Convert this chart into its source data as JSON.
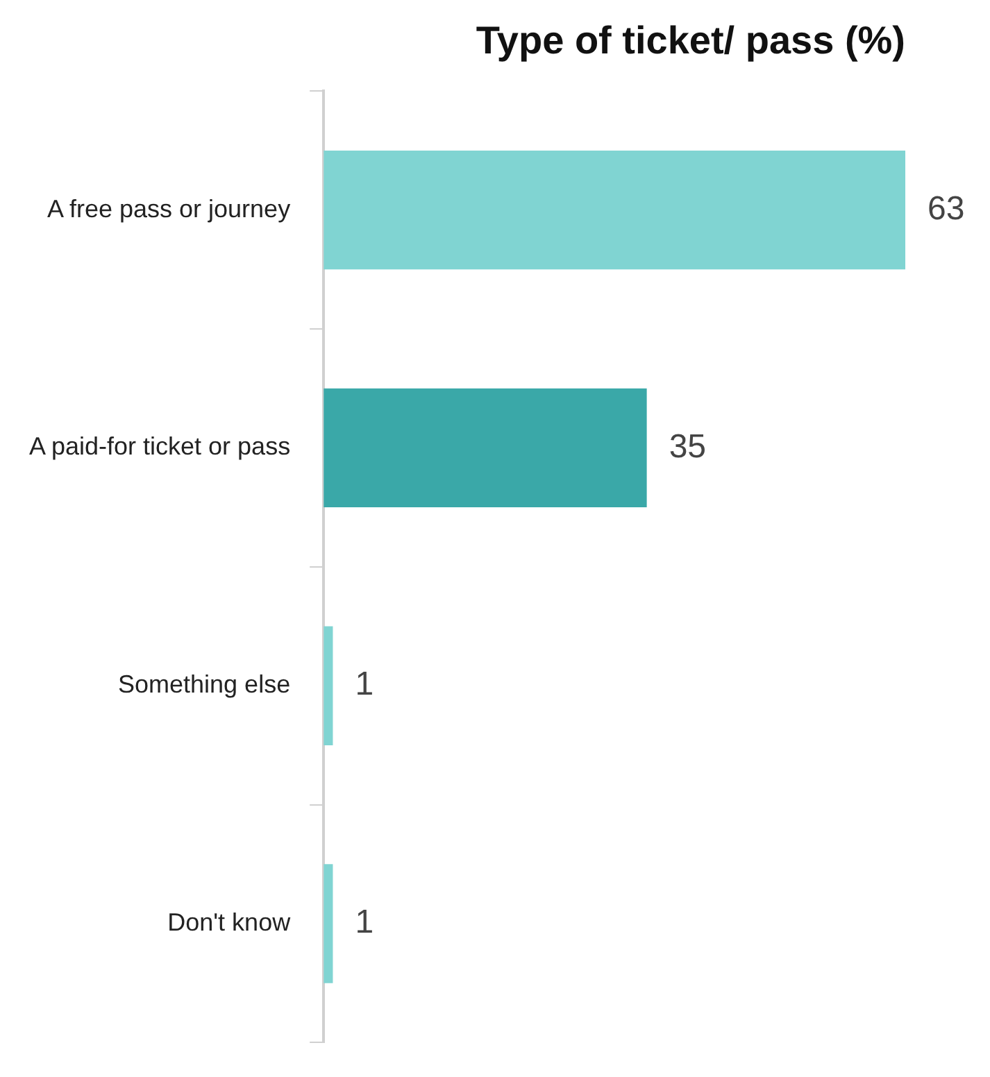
{
  "chart_data": {
    "type": "bar",
    "orientation": "horizontal",
    "title": "Type of ticket/ pass (%)",
    "categories": [
      "A free pass or journey",
      "A paid-for ticket or pass",
      "Something else",
      "Don't know"
    ],
    "values": [
      63,
      35,
      1,
      1
    ],
    "colors": [
      "#80d4d2",
      "#3aa8a8",
      "#80d4d2",
      "#80d4d2"
    ],
    "data_labels": true,
    "legend": false
  }
}
